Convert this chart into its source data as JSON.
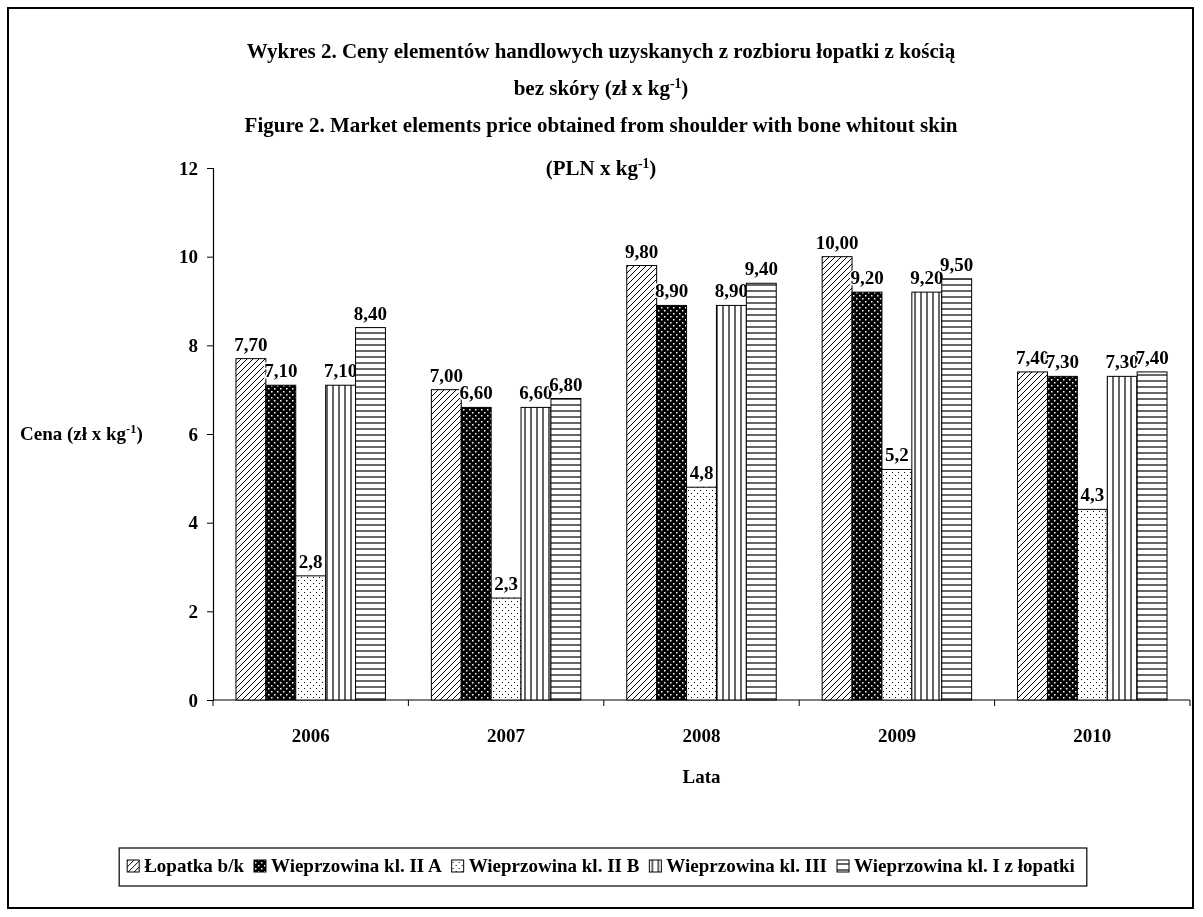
{
  "chart_data": {
    "type": "bar",
    "title": "Wykres 2. Ceny elementów handlowych uzyskanych z rozbioru łopatki z kością\nbez skóry (zł x kg$^{-1}$)",
    "subtitle": "Figure 2. Market elements price obtained from shoulder with bone whitout skin\n(PLN x kg$^{-1}$)",
    "xlabel": "Lata",
    "ylabel": "Cena (zł x kg$^{-1}$)",
    "categories": [
      "2006",
      "2007",
      "2008",
      "2009",
      "2010"
    ],
    "series": [
      {
        "name": "Łopatka b/k",
        "color": "#000000",
        "values": [
          7.7,
          7.0,
          9.8,
          10.0,
          7.4
        ],
        "value_labels": [
          "7,70",
          "7,00",
          "9,80",
          "10,00",
          "7,40"
        ]
      },
      {
        "name": "Wieprzowina kl. II A",
        "color": "#000000",
        "values": [
          7.1,
          6.6,
          8.9,
          9.2,
          7.3
        ],
        "value_labels": [
          "7,10",
          "6,60",
          "8,90",
          "9,20",
          "7,30"
        ]
      },
      {
        "name": "Wieprzowina kl. II B",
        "color": "#000000",
        "values": [
          2.8,
          2.3,
          4.8,
          5.2,
          4.3
        ],
        "value_labels": [
          "2,8",
          "2,3",
          "4,8",
          "5,2",
          "4,3"
        ]
      },
      {
        "name": "Wieprzowina kl. III",
        "color": "#000000",
        "values": [
          7.1,
          6.6,
          8.9,
          9.2,
          7.3
        ],
        "value_labels": [
          "7,10",
          "6,60",
          "8,90",
          "9,20",
          "7,30"
        ]
      },
      {
        "name": "Wieprzowina kl. I z łopatki",
        "color": "#000000",
        "values": [
          8.4,
          6.8,
          9.4,
          9.5,
          7.4
        ],
        "value_labels": [
          "8,40",
          "6,80",
          "9,40",
          "9,50",
          "7,40"
        ]
      }
    ],
    "ylim": [
      0,
      12
    ],
    "yticks": [
      0,
      2,
      4,
      6,
      8,
      10,
      12
    ],
    "grid": false,
    "legend": "bottom"
  }
}
